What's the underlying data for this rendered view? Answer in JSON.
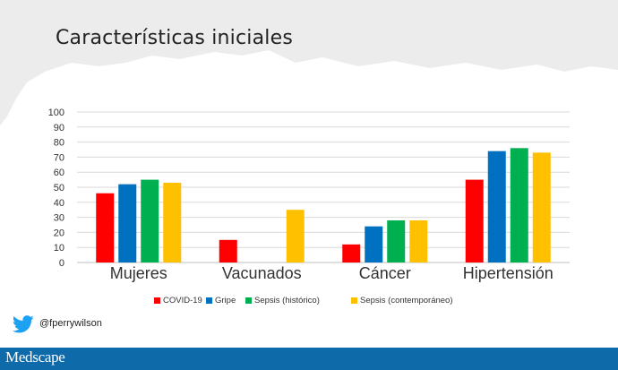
{
  "slide_title": "Características iniciales",
  "footer": {
    "logo": "Medscape"
  },
  "social": {
    "handle": "@fperrywilson",
    "icon": "twitter-bird-icon"
  },
  "colors": {
    "COVID-19": "#ff0000",
    "Gripe": "#0070c0",
    "Sepsis (histórico)": "#00b050",
    "Sepsis (contemporáneo)": "#ffc000",
    "footer": "#0e6aa8"
  },
  "chart_data": {
    "type": "bar",
    "title": "",
    "xlabel": "",
    "ylabel": "",
    "ylim": [
      0,
      100
    ],
    "yticks": [
      0,
      10,
      20,
      30,
      40,
      50,
      60,
      70,
      80,
      90,
      100
    ],
    "grid": true,
    "legend_position": "bottom",
    "categories": [
      "Mujeres",
      "Vacunados",
      "Cáncer",
      "Hipertensión"
    ],
    "series": [
      {
        "name": "COVID-19",
        "color": "#ff0000",
        "values": [
          46,
          15,
          12,
          55
        ]
      },
      {
        "name": "Gripe",
        "color": "#0070c0",
        "values": [
          52,
          null,
          24,
          74
        ]
      },
      {
        "name": "Sepsis (histórico)",
        "color": "#00b050",
        "values": [
          55,
          null,
          28,
          76
        ]
      },
      {
        "name": "Sepsis (contemporáneo)",
        "color": "#ffc000",
        "values": [
          53,
          35,
          28,
          73
        ]
      }
    ]
  }
}
